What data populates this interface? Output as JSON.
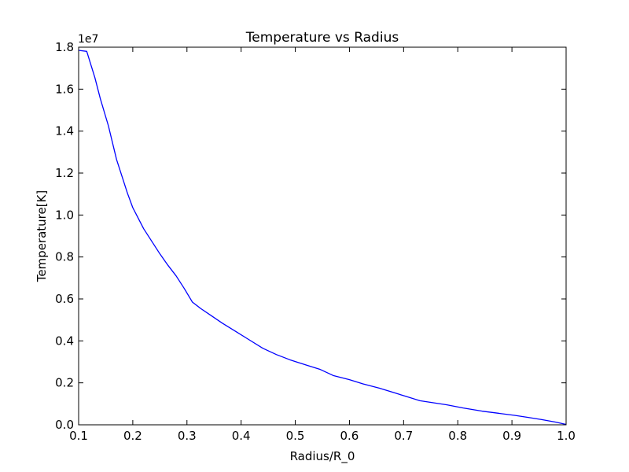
{
  "chart_data": {
    "type": "line",
    "title": "Temperature vs Radius",
    "xlabel": "Radius/R_0",
    "ylabel": "Temperature[K]",
    "y_offset_label": "1e7",
    "xlim": [
      0.1,
      1.0
    ],
    "ylim": [
      0.0,
      1.8
    ],
    "y_scale_multiplier": 10000000,
    "grid": false,
    "legend": "none",
    "x_ticks": [
      "0.1",
      "0.2",
      "0.3",
      "0.4",
      "0.5",
      "0.6",
      "0.7",
      "0.8",
      "0.9",
      "1.0"
    ],
    "y_ticks": [
      "0.0",
      "0.2",
      "0.4",
      "0.6",
      "0.8",
      "1.0",
      "1.2",
      "1.4",
      "1.6",
      "1.8"
    ],
    "series": [
      {
        "color": "#0000ff",
        "x": [
          0.1,
          0.115,
          0.13,
          0.14,
          0.155,
          0.17,
          0.19,
          0.2,
          0.21,
          0.22,
          0.235,
          0.25,
          0.265,
          0.28,
          0.295,
          0.31,
          0.325,
          0.345,
          0.365,
          0.39,
          0.415,
          0.44,
          0.465,
          0.49,
          0.52,
          0.545,
          0.57,
          0.6,
          0.625,
          0.655,
          0.68,
          0.705,
          0.73,
          0.755,
          0.78,
          0.81,
          0.845,
          0.875,
          0.905,
          0.93,
          0.955,
          0.98,
          1.0
        ],
        "y": [
          1.785,
          1.78,
          1.655,
          1.555,
          1.425,
          1.265,
          1.105,
          1.035,
          0.985,
          0.935,
          0.875,
          0.815,
          0.76,
          0.71,
          0.65,
          0.585,
          0.555,
          0.52,
          0.485,
          0.445,
          0.405,
          0.365,
          0.335,
          0.31,
          0.285,
          0.265,
          0.235,
          0.215,
          0.195,
          0.175,
          0.155,
          0.135,
          0.115,
          0.105,
          0.095,
          0.08,
          0.065,
          0.055,
          0.045,
          0.035,
          0.025,
          0.013,
          0.002
        ]
      }
    ]
  }
}
